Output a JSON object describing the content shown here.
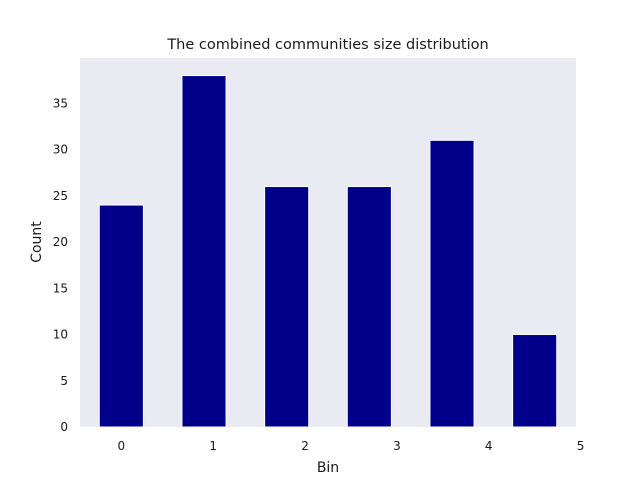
{
  "chart_data": {
    "type": "bar",
    "title": "The combined communities size distribution",
    "xlabel": "Bin",
    "ylabel": "Count",
    "x_ticks": [
      "0",
      "1",
      "2",
      "3",
      "4",
      "5"
    ],
    "y_ticks": [
      "0",
      "5",
      "10",
      "15",
      "20",
      "25",
      "30",
      "35"
    ],
    "bars": [
      {
        "x_start": -0.24,
        "x_end": 0.24,
        "value": 24
      },
      {
        "x_start": 0.66,
        "x_end": 1.14,
        "value": 38
      },
      {
        "x_start": 1.56,
        "x_end": 2.04,
        "value": 26
      },
      {
        "x_start": 2.46,
        "x_end": 2.94,
        "value": 26
      },
      {
        "x_start": 3.36,
        "x_end": 3.84,
        "value": 31
      },
      {
        "x_start": 4.26,
        "x_end": 4.74,
        "value": 10
      }
    ],
    "xlim": [
      -0.45,
      4.95
    ],
    "ylim": [
      0,
      39.9
    ],
    "grid": false,
    "colors": {
      "bar": "#00008b",
      "background": "#eaeaf2"
    }
  }
}
